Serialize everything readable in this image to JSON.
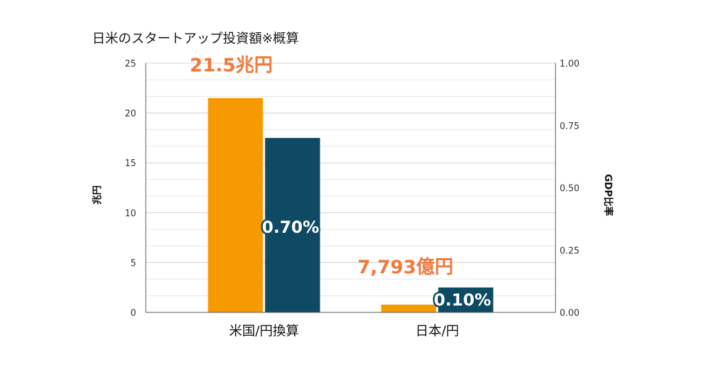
{
  "chart_data": {
    "type": "bar",
    "title": "日米のスタートアップ投資額※概算",
    "categories": [
      "米国/円換算",
      "日本/円"
    ],
    "ylabel": "兆円",
    "y2label": "GDP比率",
    "ylim": [
      0,
      25
    ],
    "y2lim": [
      0,
      1.0
    ],
    "yticks": [
      "0",
      "5",
      "10",
      "15",
      "20",
      "25"
    ],
    "y2ticks": [
      "0.00",
      "0.25",
      "0.50",
      "0.75",
      "1.00"
    ],
    "grid": true,
    "series": [
      {
        "axis": "left",
        "values": [
          21.5,
          0.78
        ],
        "color": "#F59A00"
      },
      {
        "axis": "right",
        "values": [
          0.7,
          0.1
        ],
        "color": "#0E4A63"
      }
    ],
    "annotations": {
      "us_amount": "21.5兆円",
      "us_ratio": "0.70%",
      "jp_amount": "7,793億円",
      "jp_ratio": "0.10%"
    },
    "amount_color": "#F07A3A"
  }
}
